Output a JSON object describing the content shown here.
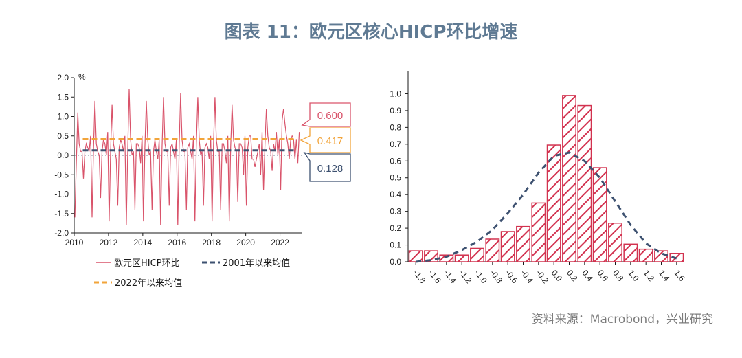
{
  "title": "图表 11：欧元区核心HICP环比增速",
  "source": "资料来源：Macrobond，兴业研究",
  "colors": {
    "title": "#5f7a93",
    "series": "#d9536a",
    "avg2001": "#3d5170",
    "avg2022": "#f2a43a",
    "bar_stroke": "#d2324f",
    "bar_hatch": "#d2324f",
    "fit": "#3d5170"
  },
  "chart_data": [
    {
      "type": "line",
      "unit": "%",
      "xlim": [
        2010,
        2023.3
      ],
      "ylim": [
        -2.0,
        2.0
      ],
      "x_ticks": [
        "2010",
        "2012",
        "2014",
        "2016",
        "2018",
        "2020",
        "2022"
      ],
      "y_ticks": [
        "2.0",
        "1.5",
        "1.0",
        "0.5",
        "0.0",
        "-0.5",
        "-1.0",
        "-1.5",
        "-2.0"
      ],
      "series": [
        {
          "name": "欧元区HICP环比",
          "kind": "monthly",
          "start": 2010.0,
          "values": [
            -1.6,
            -0.2,
            1.1,
            0.3,
            0.1,
            0.1,
            -0.6,
            0.1,
            0.3,
            0.2,
            0.1,
            0.5,
            -1.6,
            0.1,
            1.4,
            0.3,
            0.1,
            0.0,
            -1.1,
            0.1,
            0.4,
            0.3,
            0.0,
            0.6,
            -1.7,
            0.1,
            1.3,
            0.3,
            0.1,
            -0.1,
            -1.3,
            0.2,
            0.4,
            0.3,
            0.1,
            0.5,
            -1.8,
            0.2,
            1.7,
            0.4,
            0.0,
            0.1,
            -1.4,
            0.3,
            0.3,
            0.2,
            -0.2,
            0.5,
            -1.7,
            0.2,
            1.4,
            0.4,
            0.0,
            0.1,
            -1.4,
            0.1,
            0.4,
            0.1,
            -0.1,
            0.4,
            -1.8,
            0.2,
            1.5,
            0.3,
            0.1,
            0.1,
            -1.3,
            0.2,
            0.3,
            0.1,
            -0.1,
            0.4,
            -1.8,
            0.3,
            1.6,
            0.4,
            0.1,
            0.1,
            -1.4,
            0.2,
            0.3,
            0.1,
            -0.1,
            0.5,
            -1.7,
            0.3,
            1.5,
            0.4,
            0.0,
            0.1,
            -1.3,
            0.2,
            0.3,
            0.2,
            -0.1,
            0.5,
            -1.7,
            0.3,
            1.5,
            0.4,
            0.1,
            0.1,
            -1.4,
            0.3,
            0.3,
            0.1,
            -0.2,
            0.5,
            -1.7,
            0.2,
            1.3,
            0.4,
            0.2,
            0.1,
            -1.2,
            0.3,
            0.3,
            0.2,
            -0.5,
            0.5,
            -1.3,
            0.2,
            0.5,
            0.5,
            -0.1,
            -0.1,
            -0.3,
            -0.1,
            0.1,
            0.3,
            -0.5,
            0.6,
            -0.9,
            0.3,
            1.2,
            0.5,
            0.2,
            0.1,
            -0.4,
            0.3,
            0.1,
            0.6,
            0.0,
            0.4,
            -0.9,
            0.9,
            1.2,
            0.8,
            0.5,
            0.3,
            -0.1,
            0.4,
            0.5,
            0.4,
            -0.1,
            0.4,
            -0.2,
            0.6
          ]
        },
        {
          "name": "2001年以来均值",
          "value": 0.128,
          "from": 2010.5,
          "to": 2023.0,
          "style": "dashed"
        },
        {
          "name": "2022年以来均值",
          "value": 0.417,
          "from": 2010.5,
          "to": 2023.0,
          "style": "dashed"
        }
      ],
      "callouts": [
        "0.600",
        "0.417",
        "0.128"
      ]
    },
    {
      "type": "bar",
      "categories": [
        "-1.8",
        "-1.6",
        "-1.4",
        "-1.2",
        "-1.0",
        "-0.8",
        "-0.6",
        "-0.4",
        "-0.2",
        "0.0",
        "0.2",
        "0.4",
        "0.6",
        "0.8",
        "1.0",
        "1.2",
        "1.4",
        "1.6"
      ],
      "values": [
        0.065,
        0.065,
        0.04,
        0.04,
        0.08,
        0.135,
        0.18,
        0.21,
        0.35,
        0.695,
        0.99,
        0.93,
        0.56,
        0.23,
        0.105,
        0.075,
        0.065,
        0.05
      ],
      "ylim": [
        0,
        1.1
      ],
      "y_ticks": [
        "0.0",
        "0.1",
        "0.2",
        "0.3",
        "0.4",
        "0.5",
        "0.6",
        "0.7",
        "0.8",
        "0.9",
        "1.0"
      ],
      "fit_curve": {
        "style": "dashed",
        "x": [
          -1.8,
          -1.6,
          -1.4,
          -1.2,
          -1.0,
          -0.8,
          -0.6,
          -0.4,
          -0.2,
          0.0,
          0.2,
          0.4,
          0.6,
          0.8,
          1.0,
          1.2,
          1.4,
          1.6
        ],
        "y": [
          0.0,
          0.01,
          0.03,
          0.07,
          0.12,
          0.19,
          0.29,
          0.4,
          0.53,
          0.63,
          0.65,
          0.6,
          0.5,
          0.36,
          0.22,
          0.11,
          0.05,
          0.02
        ]
      }
    }
  ]
}
